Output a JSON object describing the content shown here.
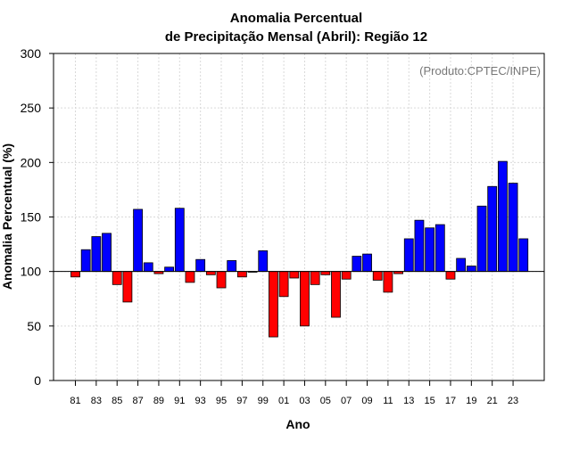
{
  "chart_data": {
    "type": "bar",
    "title_line1": "Anomalia Percentual",
    "title_line2": "de Precipitação Mensal (Abril): Região 12",
    "watermark": "(Produto:CPTEC/INPE)",
    "xlabel": "Ano",
    "ylabel": "Anomalia Percentual (%)",
    "ylim": [
      0,
      300
    ],
    "yticks": [
      "0",
      "50",
      "100",
      "150",
      "200",
      "250",
      "300"
    ],
    "baseline": 100,
    "grid": true,
    "colors": {
      "above": "#0000ff",
      "below": "#ff0000",
      "axis": "#000000",
      "grid": "#d9d9d9",
      "watermark": "#777777"
    },
    "categories": [
      "81",
      "82",
      "83",
      "84",
      "85",
      "86",
      "87",
      "88",
      "89",
      "90",
      "91",
      "92",
      "93",
      "94",
      "95",
      "96",
      "97",
      "98",
      "99",
      "00",
      "01",
      "02",
      "03",
      "04",
      "05",
      "06",
      "07",
      "08",
      "09",
      "10",
      "11",
      "12",
      "13",
      "14",
      "15",
      "16",
      "17",
      "18",
      "19",
      "20",
      "21",
      "22",
      "23",
      "24"
    ],
    "xtick_labels": [
      "81",
      "",
      "83",
      "",
      "85",
      "",
      "87",
      "",
      "89",
      "",
      "91",
      "",
      "93",
      "",
      "95",
      "",
      "97",
      "",
      "99",
      "",
      "01",
      "",
      "03",
      "",
      "05",
      "",
      "07",
      "",
      "09",
      "",
      "11",
      "",
      "13",
      "",
      "15",
      "",
      "17",
      "",
      "19",
      "",
      "21",
      "",
      "23",
      ""
    ],
    "values": [
      95,
      120,
      132,
      135,
      88,
      72,
      157,
      108,
      98,
      104,
      158,
      90,
      111,
      97,
      85,
      110,
      95,
      100,
      119,
      40,
      77,
      94,
      50,
      88,
      97,
      58,
      93,
      114,
      116,
      92,
      81,
      98,
      130,
      147,
      140,
      143,
      93,
      112,
      105,
      160,
      178,
      201,
      181,
      130
    ]
  }
}
